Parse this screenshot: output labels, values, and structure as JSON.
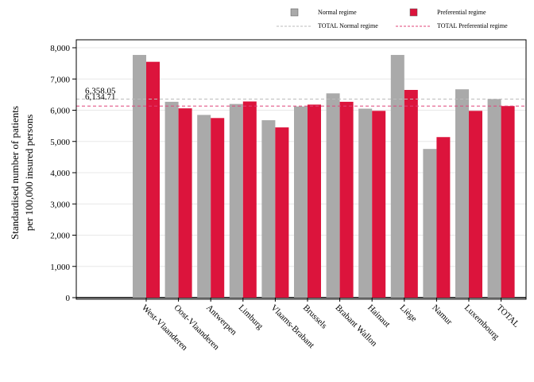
{
  "chart_data": {
    "type": "bar",
    "title": "",
    "xlabel": "",
    "ylabel": [
      "Standardised number of patients",
      "per 100,000 insured persons"
    ],
    "ylim": [
      0,
      8000
    ],
    "yticks": [
      "0",
      "1,000",
      "2,000",
      "3,000",
      "4,000",
      "5,000",
      "6,000",
      "7,000",
      "8,000"
    ],
    "grid": true,
    "legend_position": "top-right",
    "categories": [
      "West-Vlaanderen",
      "Oost-Vlaanderen",
      "Antwerpen",
      "Limburg",
      "Vlaams-Brabant",
      "Brussels",
      "Brabant Wallon",
      "Hainaut",
      "Liège",
      "Namur",
      "Luxembourg",
      "TOTAL"
    ],
    "series": [
      {
        "name": "Normal regime",
        "color": "#aaaaaa",
        "values": [
          7770,
          6270,
          5850,
          6200,
          5680,
          6120,
          6540,
          6050,
          7770,
          4760,
          6670,
          6358.05
        ]
      },
      {
        "name": "Preferential regime",
        "color": "#dc143c",
        "values": [
          7550,
          6060,
          5750,
          6280,
          5450,
          6180,
          6270,
          5980,
          6650,
          5140,
          5980,
          6134.71
        ]
      }
    ],
    "reference_lines": [
      {
        "name": "TOTAL Normal regime",
        "value": 6358.05,
        "label": "6,358.05",
        "color": "#bbbbbb"
      },
      {
        "name": "TOTAL Preferential regime",
        "value": 6134.71,
        "label": "6,134.71",
        "color": "#e0457a"
      }
    ]
  }
}
